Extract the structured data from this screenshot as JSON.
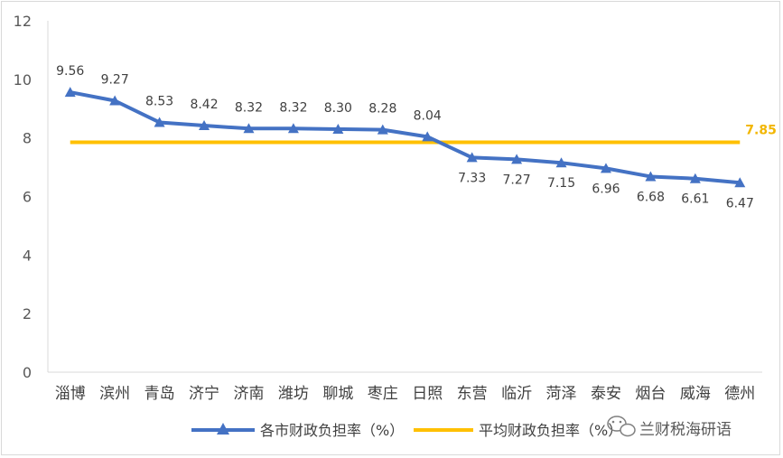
{
  "chart_data": {
    "type": "line",
    "categories": [
      "淄博",
      "滨州",
      "青岛",
      "济宁",
      "济南",
      "潍坊",
      "聊城",
      "枣庄",
      "日照",
      "东营",
      "临沂",
      "菏泽",
      "泰安",
      "烟台",
      "威海",
      "德州"
    ],
    "series": [
      {
        "name": "各市财政负担率（%）",
        "color": "#4472c4",
        "values": [
          9.56,
          9.27,
          8.53,
          8.42,
          8.32,
          8.32,
          8.3,
          8.28,
          8.04,
          7.33,
          7.27,
          7.15,
          6.96,
          6.68,
          6.61,
          6.47
        ],
        "labels": [
          "9.56",
          "9.27",
          "8.53",
          "8.42",
          "8.32",
          "8.32",
          "8.30",
          "8.28",
          "8.04",
          "7.33",
          "7.27",
          "7.15",
          "6.96",
          "6.68",
          "6.61",
          "6.47"
        ]
      },
      {
        "name": "平均财政负担率（%）",
        "color": "#ffc000",
        "values": [
          7.85,
          7.85,
          7.85,
          7.85,
          7.85,
          7.85,
          7.85,
          7.85,
          7.85,
          7.85,
          7.85,
          7.85,
          7.85,
          7.85,
          7.85,
          7.85
        ],
        "end_label": "7.85"
      }
    ],
    "yticks": [
      "0",
      "2",
      "4",
      "6",
      "8",
      "10",
      "12"
    ],
    "ylim": [
      0,
      12
    ],
    "grid": false,
    "legend": "bottom"
  },
  "watermark": {
    "text": "兰财税海研语",
    "icon": "wechat-icon"
  }
}
